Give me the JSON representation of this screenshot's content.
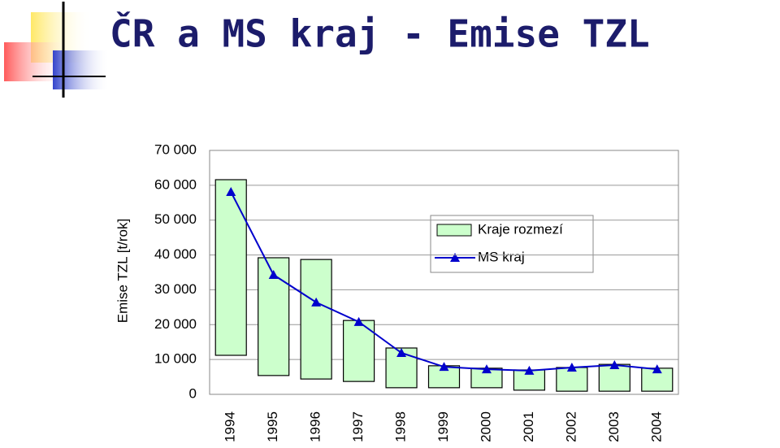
{
  "chart_data": {
    "type": "combo",
    "title": "ČR a MS kraj - Emise TZL",
    "y_label": "Emise TZL [t/rok]",
    "categories": [
      "1994",
      "1995",
      "1996",
      "1997",
      "1998",
      "1999",
      "2000",
      "2001",
      "2002",
      "2003",
      "2004"
    ],
    "series": [
      {
        "name": "Kraje rozmezí",
        "type": "range-bar",
        "color": "#ccffcc",
        "low": [
          11200,
          5400,
          4400,
          3700,
          1900,
          1900,
          1900,
          1200,
          900,
          900,
          900
        ],
        "high": [
          61600,
          39200,
          38700,
          21200,
          13300,
          8200,
          7500,
          7000,
          7700,
          8600,
          7500
        ]
      },
      {
        "name": "MS kraj",
        "type": "line",
        "color": "#0000cc",
        "values": [
          58100,
          34300,
          26400,
          20800,
          11900,
          7900,
          7200,
          6800,
          7700,
          8400,
          7200
        ]
      }
    ],
    "ylim": [
      0,
      70000
    ],
    "yticks": [
      0,
      {
        "value": 10000,
        "label": "10 000"
      },
      {
        "value": 20000,
        "label": "20 000"
      },
      {
        "value": 30000,
        "label": "30 000"
      },
      {
        "value": 40000,
        "label": "40 000"
      },
      {
        "value": 50000,
        "label": "50 000"
      },
      {
        "value": 60000,
        "label": "60 000"
      },
      {
        "value": 70000,
        "label": "70 000"
      }
    ],
    "grid": true,
    "legend_loc": "upper right"
  }
}
